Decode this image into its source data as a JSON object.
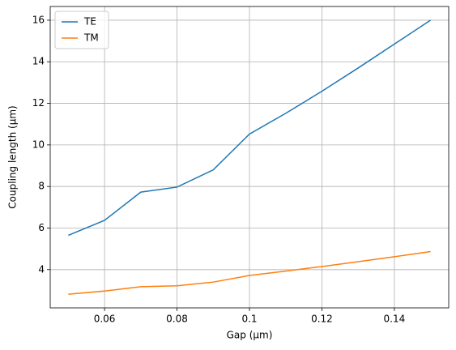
{
  "chart_data": {
    "type": "line",
    "x": [
      0.05,
      0.06,
      0.07,
      0.08,
      0.09,
      0.1,
      0.11,
      0.12,
      0.13,
      0.14,
      0.15
    ],
    "series": [
      {
        "name": "TE",
        "color": "#1f77b4",
        "values": [
          5.65,
          6.37,
          7.73,
          7.97,
          8.8,
          10.52,
          11.52,
          12.58,
          13.7,
          14.85,
          16.0
        ]
      },
      {
        "name": "TM",
        "color": "#ff7f0e",
        "values": [
          2.82,
          2.97,
          3.18,
          3.22,
          3.4,
          3.72,
          3.93,
          4.15,
          4.38,
          4.62,
          4.87
        ]
      }
    ],
    "xlabel": "Gap (µm)",
    "ylabel": "Coupling length (µm)",
    "xlim": [
      0.045,
      0.155
    ],
    "ylim": [
      2.16,
      16.66
    ],
    "xticks": [
      0.06,
      0.08,
      0.1,
      0.12,
      0.14
    ],
    "yticks": [
      4,
      6,
      8,
      10,
      12,
      14,
      16
    ],
    "grid": true,
    "legend": "upper-left"
  }
}
